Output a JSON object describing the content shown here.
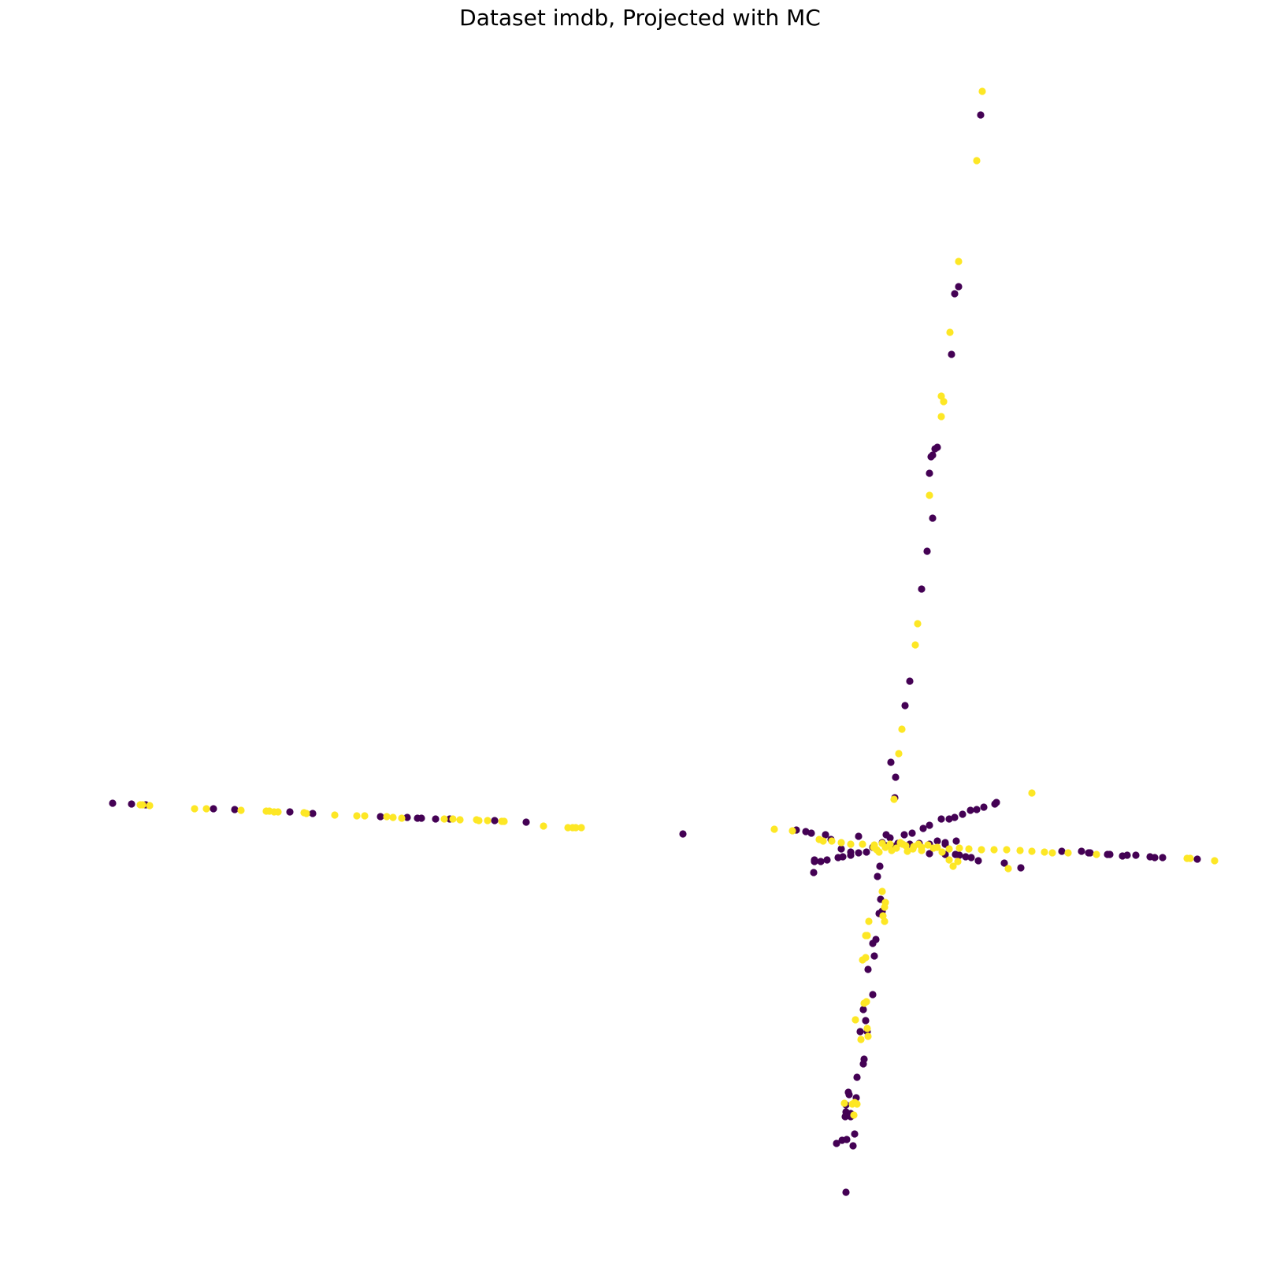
{
  "chart_data": {
    "type": "scatter",
    "title": "Dataset imdb, Projected with MC",
    "xlabel": "",
    "ylabel": "",
    "axes_visible": false,
    "grid": false,
    "legend": "none",
    "colors": {
      "class_0": "#440154",
      "class_1": "#fde725"
    },
    "series": [
      {
        "values": [
          [
            143,
            1020
          ],
          [
            167,
            1021
          ],
          [
            185,
            1022
          ],
          [
            271,
            1027
          ],
          [
            298,
            1028
          ],
          [
            368,
            1031
          ],
          [
            397,
            1033
          ],
          [
            483,
            1037
          ],
          [
            517,
            1038
          ],
          [
            530,
            1039
          ],
          [
            535,
            1039
          ],
          [
            553,
            1040
          ],
          [
            571,
            1040
          ],
          [
            628,
            1042
          ],
          [
            668,
            1044
          ],
          [
            867,
            1059
          ],
          [
            1245,
            146
          ],
          [
            1217,
            364
          ],
          [
            1212,
            373
          ],
          [
            1208,
            450
          ],
          [
            1190,
            568
          ],
          [
            1187,
            570
          ],
          [
            1184,
            578
          ],
          [
            1182,
            580
          ],
          [
            1180,
            601
          ],
          [
            1184,
            658
          ],
          [
            1177,
            700
          ],
          [
            1170,
            748
          ],
          [
            1155,
            865
          ],
          [
            1149,
            896
          ],
          [
            1131,
            968
          ],
          [
            1137,
            987
          ],
          [
            1136,
            1013
          ],
          [
            1011,
            1054
          ],
          [
            1023,
            1056
          ],
          [
            1030,
            1058
          ],
          [
            1048,
            1060
          ],
          [
            1033,
            1108
          ],
          [
            1034,
            1094
          ],
          [
            1034,
            1092
          ],
          [
            1042,
            1094
          ],
          [
            1050,
            1092
          ],
          [
            1064,
            1089
          ],
          [
            1070,
            1088
          ],
          [
            1080,
            1086
          ],
          [
            1090,
            1083
          ],
          [
            1100,
            1082
          ],
          [
            1108,
            1076
          ],
          [
            1120,
            1070
          ],
          [
            1130,
            1064
          ],
          [
            1135,
            1075
          ],
          [
            1125,
            1074
          ],
          [
            1140,
            1071
          ],
          [
            1148,
            1060
          ],
          [
            1158,
            1058
          ],
          [
            1172,
            1052
          ],
          [
            1180,
            1048
          ],
          [
            1195,
            1040
          ],
          [
            1205,
            1040
          ],
          [
            1212,
            1038
          ],
          [
            1222,
            1034
          ],
          [
            1232,
            1029
          ],
          [
            1240,
            1028
          ],
          [
            1249,
            1025
          ],
          [
            1263,
            1021
          ],
          [
            1265,
            1019
          ],
          [
            1140,
            1071
          ],
          [
            1155,
            1072
          ],
          [
            1167,
            1071
          ],
          [
            1180,
            1072
          ],
          [
            1190,
            1068
          ],
          [
            1200,
            1070
          ],
          [
            1214,
            1068
          ],
          [
            1180,
            1084
          ],
          [
            1200,
            1085
          ],
          [
            1213,
            1085
          ],
          [
            1218,
            1086
          ],
          [
            1226,
            1088
          ],
          [
            1233,
            1089
          ],
          [
            1242,
            1093
          ],
          [
            1275,
            1096
          ],
          [
            1296,
            1102
          ],
          [
            1348,
            1081
          ],
          [
            1373,
            1081
          ],
          [
            1382,
            1083
          ],
          [
            1384,
            1083
          ],
          [
            1406,
            1085
          ],
          [
            1409,
            1085
          ],
          [
            1425,
            1087
          ],
          [
            1431,
            1086
          ],
          [
            1442,
            1086
          ],
          [
            1460,
            1088
          ],
          [
            1466,
            1089
          ],
          [
            1476,
            1089
          ],
          [
            1520,
            1091
          ],
          [
            1117,
            1100
          ],
          [
            1114,
            1113
          ],
          [
            1118,
            1142
          ],
          [
            1120,
            1157
          ],
          [
            1116,
            1160
          ],
          [
            1108,
            1198
          ],
          [
            1112,
            1193
          ],
          [
            1110,
            1214
          ],
          [
            1102,
            1231
          ],
          [
            1108,
            1263
          ],
          [
            1096,
            1282
          ],
          [
            1099,
            1296
          ],
          [
            1092,
            1310
          ],
          [
            1101,
            1310
          ],
          [
            1096,
            1351
          ],
          [
            1097,
            1345
          ],
          [
            1088,
            1368
          ],
          [
            1078,
            1390
          ],
          [
            1077,
            1387
          ],
          [
            1087,
            1394
          ],
          [
            1074,
            1403
          ],
          [
            1074,
            1412
          ],
          [
            1080,
            1414
          ],
          [
            1069,
            1448
          ],
          [
            1075,
            1447
          ],
          [
            1073,
            1418
          ],
          [
            1085,
            1440
          ],
          [
            1080,
            1418
          ],
          [
            1062,
            1452
          ],
          [
            1083,
            1455
          ],
          [
            1074,
            1514
          ],
          [
            1055,
            1066
          ],
          [
            1068,
            1078
          ],
          [
            1080,
            1082
          ],
          [
            1090,
            1062
          ],
          [
            1125,
            1060
          ],
          [
            1200,
            1072
          ]
        ]
      },
      {
        "values": [
          [
            178,
            1022
          ],
          [
            181,
            1022
          ],
          [
            190,
            1023
          ],
          [
            247,
            1027
          ],
          [
            262,
            1027
          ],
          [
            306,
            1029
          ],
          [
            338,
            1030
          ],
          [
            342,
            1030
          ],
          [
            348,
            1031
          ],
          [
            353,
            1031
          ],
          [
            386,
            1032
          ],
          [
            389,
            1033
          ],
          [
            425,
            1035
          ],
          [
            453,
            1036
          ],
          [
            463,
            1036
          ],
          [
            491,
            1037
          ],
          [
            499,
            1038
          ],
          [
            510,
            1039
          ],
          [
            564,
            1040
          ],
          [
            575,
            1040
          ],
          [
            584,
            1041
          ],
          [
            605,
            1041
          ],
          [
            608,
            1042
          ],
          [
            619,
            1042
          ],
          [
            637,
            1043
          ],
          [
            640,
            1043
          ],
          [
            690,
            1049
          ],
          [
            721,
            1051
          ],
          [
            727,
            1051
          ],
          [
            731,
            1051
          ],
          [
            738,
            1051
          ],
          [
            983,
            1053
          ],
          [
            1006,
            1055
          ],
          [
            1247,
            116
          ],
          [
            1240,
            204
          ],
          [
            1217,
            332
          ],
          [
            1206,
            422
          ],
          [
            1195,
            503
          ],
          [
            1198,
            510
          ],
          [
            1195,
            529
          ],
          [
            1180,
            629
          ],
          [
            1165,
            792
          ],
          [
            1162,
            819
          ],
          [
            1145,
            926
          ],
          [
            1141,
            957
          ],
          [
            1135,
            1015
          ],
          [
            1040,
            1066
          ],
          [
            1045,
            1068
          ],
          [
            1056,
            1068
          ],
          [
            1068,
            1070
          ],
          [
            1080,
            1072
          ],
          [
            1095,
            1072
          ],
          [
            1110,
            1073
          ],
          [
            1120,
            1071
          ],
          [
            1130,
            1072
          ],
          [
            1143,
            1070
          ],
          [
            1150,
            1074
          ],
          [
            1160,
            1075
          ],
          [
            1170,
            1076
          ],
          [
            1185,
            1077
          ],
          [
            1205,
            1078
          ],
          [
            1218,
            1077
          ],
          [
            1230,
            1078
          ],
          [
            1246,
            1079
          ],
          [
            1262,
            1079
          ],
          [
            1278,
            1079
          ],
          [
            1295,
            1080
          ],
          [
            1310,
            1081
          ],
          [
            1326,
            1082
          ],
          [
            1336,
            1083
          ],
          [
            1356,
            1083
          ],
          [
            1392,
            1085
          ],
          [
            1507,
            1090
          ],
          [
            1511,
            1090
          ],
          [
            1542,
            1093
          ],
          [
            1109,
            1076
          ],
          [
            1113,
            1079
          ],
          [
            1116,
            1082
          ],
          [
            1124,
            1076
          ],
          [
            1132,
            1080
          ],
          [
            1138,
            1077
          ],
          [
            1146,
            1072
          ],
          [
            1152,
            1081
          ],
          [
            1159,
            1078
          ],
          [
            1166,
            1072
          ],
          [
            1170,
            1080
          ],
          [
            1178,
            1073
          ],
          [
            1190,
            1076
          ],
          [
            1196,
            1082
          ],
          [
            1210,
            1100
          ],
          [
            1205,
            1092
          ],
          [
            1216,
            1094
          ],
          [
            1280,
            1103
          ],
          [
            1310,
            1007
          ],
          [
            1120,
            1132
          ],
          [
            1124,
            1146
          ],
          [
            1123,
            1152
          ],
          [
            1121,
            1163
          ],
          [
            1123,
            1170
          ],
          [
            1103,
            1170
          ],
          [
            1101,
            1188
          ],
          [
            1099,
            1188
          ],
          [
            1095,
            1219
          ],
          [
            1099,
            1216
          ],
          [
            1097,
            1274
          ],
          [
            1100,
            1272
          ],
          [
            1086,
            1295
          ],
          [
            1101,
            1306
          ],
          [
            1102,
            1316
          ],
          [
            1093,
            1320
          ],
          [
            1072,
            1401
          ],
          [
            1085,
            1400
          ],
          [
            1088,
            1402
          ],
          [
            1084,
            1416
          ],
          [
            1082,
            1402
          ]
        ]
      }
    ]
  }
}
